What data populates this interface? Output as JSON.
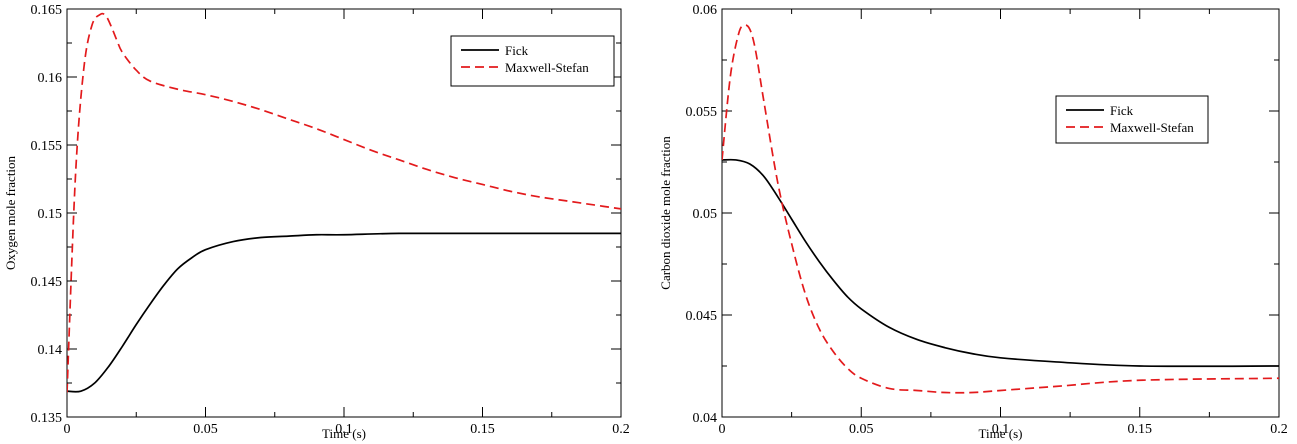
{
  "chart_data": [
    {
      "type": "line",
      "xlabel": "Time (s)",
      "ylabel": "Oxygen mole fraction",
      "xlim": [
        0,
        0.2
      ],
      "ylim": [
        0.135,
        0.165
      ],
      "xticks": [
        0,
        0.05,
        0.1,
        0.15,
        0.2
      ],
      "xtick_labels": [
        "0",
        "0.05",
        "0.1",
        "0.15",
        "0.2"
      ],
      "yticks": [
        0.135,
        0.14,
        0.145,
        0.15,
        0.155,
        0.16,
        0.165
      ],
      "ytick_labels": [
        "0.135",
        "0.14",
        "0.145",
        "0.15",
        "0.155",
        "0.16",
        "0.165"
      ],
      "grid": false,
      "legend_position": "top-right",
      "series": [
        {
          "name": "Fick",
          "color": "#000000",
          "style": "solid",
          "x": [
            0,
            0.005,
            0.01,
            0.015,
            0.02,
            0.025,
            0.03,
            0.035,
            0.04,
            0.045,
            0.05,
            0.06,
            0.07,
            0.08,
            0.09,
            0.1,
            0.12,
            0.15,
            0.2
          ],
          "y": [
            0.1369,
            0.1369,
            0.1375,
            0.1387,
            0.1402,
            0.1418,
            0.1433,
            0.1447,
            0.1459,
            0.1467,
            0.1473,
            0.1479,
            0.1482,
            0.1483,
            0.1484,
            0.1484,
            0.1485,
            0.1485,
            0.1485
          ]
        },
        {
          "name": "Maxwell-Stefan",
          "color": "#e31a1c",
          "style": "dashed",
          "x": [
            0,
            0.003,
            0.006,
            0.009,
            0.012,
            0.014,
            0.016,
            0.018,
            0.02,
            0.025,
            0.03,
            0.04,
            0.05,
            0.06,
            0.07,
            0.08,
            0.09,
            0.1,
            0.11,
            0.12,
            0.13,
            0.14,
            0.15,
            0.16,
            0.17,
            0.18,
            0.19,
            0.2
          ],
          "y": [
            0.1368,
            0.1525,
            0.1605,
            0.1638,
            0.1646,
            0.1645,
            0.1637,
            0.1627,
            0.1618,
            0.1605,
            0.1597,
            0.1591,
            0.1587,
            0.1582,
            0.1576,
            0.1569,
            0.1562,
            0.1554,
            0.1546,
            0.1539,
            0.1532,
            0.1526,
            0.1521,
            0.1516,
            0.1512,
            0.1509,
            0.1506,
            0.1503
          ]
        }
      ]
    },
    {
      "type": "line",
      "xlabel": "Time (s)",
      "ylabel": "Carbon dioxide mole fraction",
      "xlim": [
        0,
        0.2
      ],
      "ylim": [
        0.04,
        0.06
      ],
      "xticks": [
        0,
        0.05,
        0.1,
        0.15,
        0.2
      ],
      "xtick_labels": [
        "0",
        "0.05",
        "0.1",
        "0.15",
        "0.2"
      ],
      "yticks": [
        0.04,
        0.045,
        0.05,
        0.055,
        0.06
      ],
      "ytick_labels": [
        "0.04",
        "0.045",
        "0.05",
        "0.055",
        "0.06"
      ],
      "grid": false,
      "legend_position": "top-right",
      "series": [
        {
          "name": "Fick",
          "color": "#000000",
          "style": "solid",
          "x": [
            0,
            0.005,
            0.01,
            0.015,
            0.02,
            0.025,
            0.03,
            0.035,
            0.04,
            0.045,
            0.05,
            0.06,
            0.07,
            0.08,
            0.09,
            0.1,
            0.12,
            0.15,
            0.2
          ],
          "y": [
            0.0526,
            0.0526,
            0.0524,
            0.0518,
            0.0508,
            0.0497,
            0.0486,
            0.0476,
            0.0467,
            0.0459,
            0.0453,
            0.0444,
            0.0438,
            0.0434,
            0.0431,
            0.0429,
            0.0427,
            0.0425,
            0.0425
          ]
        },
        {
          "name": "Maxwell-Stefan",
          "color": "#e31a1c",
          "style": "dashed",
          "x": [
            0,
            0.003,
            0.006,
            0.008,
            0.01,
            0.012,
            0.015,
            0.02,
            0.025,
            0.03,
            0.035,
            0.04,
            0.045,
            0.05,
            0.06,
            0.07,
            0.08,
            0.09,
            0.1,
            0.12,
            0.15,
            0.2
          ],
          "y": [
            0.0526,
            0.0567,
            0.0588,
            0.0592,
            0.059,
            0.058,
            0.0555,
            0.0515,
            0.0485,
            0.046,
            0.0443,
            0.0432,
            0.0424,
            0.0419,
            0.0414,
            0.0413,
            0.0412,
            0.0412,
            0.0413,
            0.0415,
            0.0418,
            0.0419
          ]
        }
      ]
    }
  ]
}
